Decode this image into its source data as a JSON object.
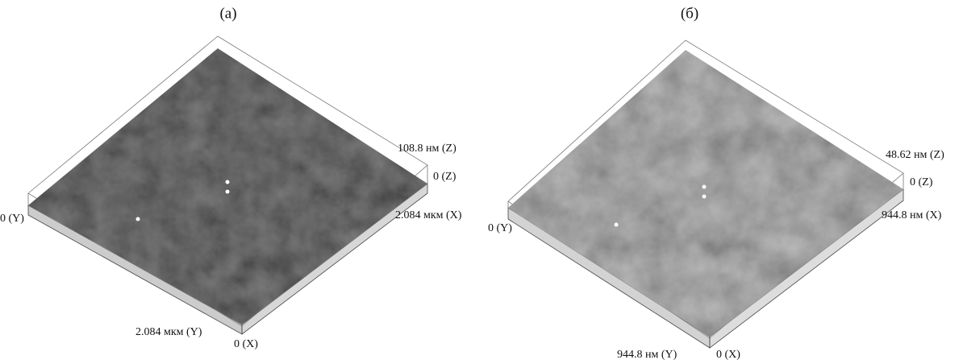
{
  "panels": [
    {
      "label": "(а)",
      "z_max": "108.8 нм (Z)",
      "z_min": "0 (Z)",
      "x_max": "2.084 мкм (X)",
      "y_zero": "0 (Y)",
      "y_max": "2.084 мкм (Y)",
      "x_zero": "0 (X)"
    },
    {
      "label": "(б)",
      "z_max": "48.62 нм (Z)",
      "z_min": "0 (Z)",
      "x_max": "944.8 нм (X)",
      "y_zero": "0 (Y)",
      "y_max": "944.8 нм (Y)",
      "x_zero": "0 (X)"
    }
  ]
}
